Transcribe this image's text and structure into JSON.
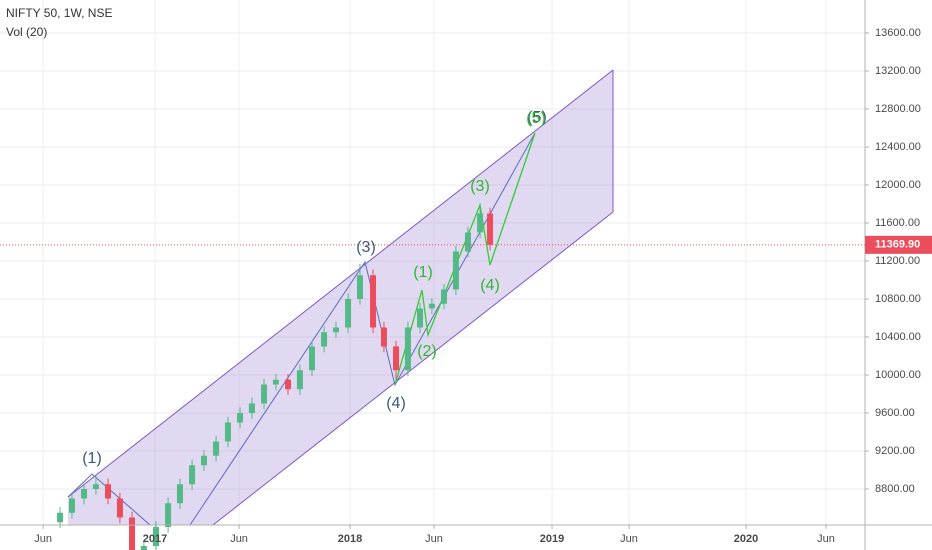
{
  "chart_data": {
    "type": "candlestick",
    "title": "NIFTY 50, 1W, NSE",
    "subtitle": "Vol (20)",
    "x": [
      2016.513,
      2016.574,
      2016.636,
      2016.697,
      2016.759,
      2016.82,
      2016.882,
      2016.943,
      2017.005,
      2017.067,
      2017.128,
      2017.19,
      2017.251,
      2017.313,
      2017.374,
      2017.436,
      2017.497,
      2017.559,
      2017.62,
      2017.682,
      2017.743,
      2017.805,
      2017.867,
      2017.928,
      2017.99,
      2018.051,
      2018.118,
      2018.174,
      2018.236,
      2018.297,
      2018.359,
      2018.42,
      2018.482,
      2018.543,
      2018.605,
      2018.667,
      2018.718
    ],
    "open": [
      8450,
      8550,
      8700,
      8800,
      8850,
      8700,
      8500,
      8100,
      8200,
      8400,
      8650,
      8850,
      9050,
      9150,
      9300,
      9500,
      9600,
      9700,
      9900,
      9950,
      9850,
      10050,
      10300,
      10450,
      10500,
      10800,
      11050,
      10500,
      10300,
      10050,
      10500,
      10700,
      10750,
      10900,
      11300,
      11500,
      11700
    ],
    "high": [
      8610,
      8760,
      8860,
      8950,
      8910,
      8760,
      8560,
      8260,
      8460,
      8710,
      8910,
      9110,
      9210,
      9360,
      9560,
      9660,
      9760,
      9960,
      10010,
      10010,
      10110,
      10360,
      10510,
      10560,
      10860,
      11170,
      11110,
      10560,
      10360,
      10560,
      10760,
      10810,
      10960,
      11360,
      11560,
      11760,
      11760
    ],
    "low": [
      8390,
      8490,
      8640,
      8740,
      8640,
      8440,
      8040,
      8040,
      8140,
      8340,
      8590,
      8790,
      8990,
      9090,
      9240,
      9440,
      9540,
      9640,
      9840,
      9790,
      9790,
      9990,
      10240,
      10390,
      10440,
      10740,
      10440,
      10240,
      9950,
      9990,
      10440,
      10640,
      10690,
      10840,
      11240,
      11440,
      11309.9
    ],
    "close": [
      8550,
      8700,
      8800,
      8850,
      8700,
      8500,
      8100,
      8200,
      8400,
      8650,
      8850,
      9050,
      9150,
      9300,
      9500,
      9600,
      9700,
      9900,
      9950,
      9850,
      10050,
      10300,
      10450,
      10500,
      10800,
      11050,
      10500,
      10300,
      10050,
      10500,
      10700,
      10750,
      10900,
      11300,
      11500,
      11700,
      11369.9
    ],
    "up_color": "#53b987",
    "down_color": "#eb4d5c",
    "xlim": [
      2016.205,
      2020.641
    ],
    "xticks": [
      {
        "value": 2016.426,
        "label": "Jun"
      },
      2017,
      {
        "value": 2017.431,
        "label": "Jun"
      },
      2018,
      {
        "value": 2018.431,
        "label": "Jun"
      },
      {
        "value": 2019.036,
        "label": "2019"
      },
      {
        "value": 2019.431,
        "label": "Jun"
      },
      {
        "value": 2020.031,
        "label": "2020"
      },
      {
        "value": 2020.441,
        "label": "Jun"
      }
    ],
    "ylim": [
      8421,
      13947
    ],
    "yticks": [
      {
        "value": 8800,
        "label": "8800.00"
      },
      {
        "value": 9200,
        "label": "9200.00"
      },
      {
        "value": 9600,
        "label": "9600.00"
      },
      {
        "value": 10000,
        "label": "10000.00"
      },
      {
        "value": 10400,
        "label": "10400.00"
      },
      {
        "value": 10800,
        "label": "10800.00"
      },
      {
        "value": 11200,
        "label": "11200.00"
      },
      {
        "value": 11600,
        "label": "11600.00"
      },
      {
        "value": 12000,
        "label": "12000.00"
      },
      {
        "value": 12400,
        "label": "12400.00"
      },
      {
        "value": 12800,
        "label": "12800.00"
      },
      {
        "value": 13200,
        "label": "13200.00"
      },
      {
        "value": 13600,
        "label": "13600.00"
      }
    ],
    "grid": true,
    "last_price": 11369.9,
    "last_price_label": "11369.90",
    "annotations": [
      "(1)",
      "(3)",
      "(4)",
      "(5)",
      "(1)",
      "(2)",
      "(3)",
      "(4)",
      "(5)"
    ]
  }
}
